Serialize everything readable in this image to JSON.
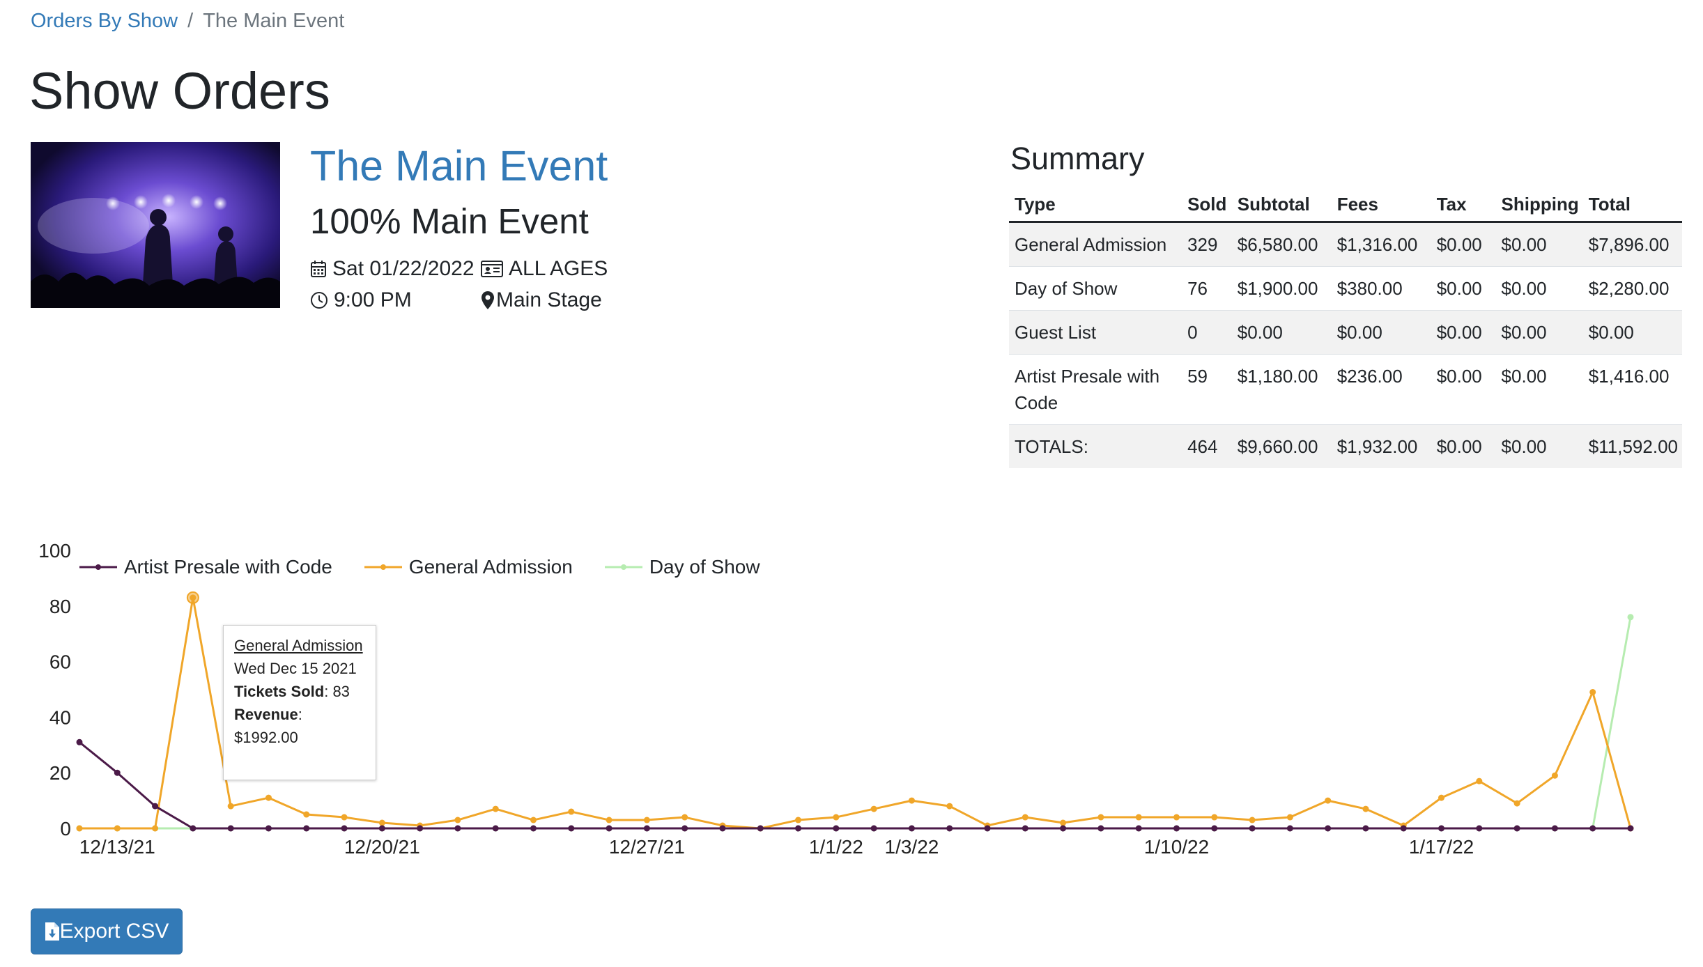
{
  "breadcrumb": {
    "parent": "Orders By Show",
    "separator": "/",
    "current": "The Main Event"
  },
  "page": {
    "title": "Show Orders"
  },
  "event": {
    "name": "The Main Event",
    "subtitle": "100% Main Event",
    "date": "Sat 01/22/2022",
    "age": "ALL AGES",
    "time": "9:00 PM",
    "venue": "Main Stage"
  },
  "summary": {
    "title": "Summary",
    "headers": [
      "Type",
      "Sold",
      "Subtotal",
      "Fees",
      "Tax",
      "Shipping",
      "Total"
    ],
    "rows": [
      [
        "General Admission",
        "329",
        "$6,580.00",
        "$1,316.00",
        "$0.00",
        "$0.00",
        "$7,896.00"
      ],
      [
        "Day of Show",
        "76",
        "$1,900.00",
        "$380.00",
        "$0.00",
        "$0.00",
        "$2,280.00"
      ],
      [
        "Guest List",
        "0",
        "$0.00",
        "$0.00",
        "$0.00",
        "$0.00",
        "$0.00"
      ],
      [
        "Artist Presale with Code",
        "59",
        "$1,180.00",
        "$236.00",
        "$0.00",
        "$0.00",
        "$1,416.00"
      ],
      [
        "TOTALS:",
        "464",
        "$9,660.00",
        "$1,932.00",
        "$0.00",
        "$0.00",
        "$11,592.00"
      ]
    ]
  },
  "tooltip": {
    "title": "General Admission",
    "date": "Wed Dec 15 2021",
    "tickets_label": "Tickets Sold",
    "tickets_value": "83",
    "revenue_label": "Revenue",
    "revenue_value": "$1992.00"
  },
  "export_label": "Export CSV",
  "colors": {
    "link": "#337ab7",
    "artist_presale": "#4b1a48",
    "general_admission": "#f0a629",
    "day_of_show": "#b6ecb0",
    "button": "#337ab7"
  },
  "icons": [
    "calendar-icon",
    "id-card-icon",
    "clock-icon",
    "map-marker-icon",
    "file-download-icon"
  ],
  "chart_data": {
    "type": "line",
    "ylim": [
      0,
      100
    ],
    "yticks": [
      0,
      20,
      40,
      60,
      80,
      100
    ],
    "xtick_labels": [
      {
        "label": "12/13/21",
        "x": "2021-12-13"
      },
      {
        "label": "12/20/21",
        "x": "2021-12-20"
      },
      {
        "label": "12/27/21",
        "x": "2021-12-27"
      },
      {
        "label": "1/1/22",
        "x": "2022-01-01"
      },
      {
        "label": "1/3/22",
        "x": "2022-01-03"
      },
      {
        "label": "1/10/22",
        "x": "2022-01-10"
      },
      {
        "label": "1/17/22",
        "x": "2022-01-17"
      }
    ],
    "x": [
      "2021-12-12",
      "2021-12-13",
      "2021-12-14",
      "2021-12-15",
      "2021-12-16",
      "2021-12-17",
      "2021-12-18",
      "2021-12-19",
      "2021-12-20",
      "2021-12-21",
      "2021-12-22",
      "2021-12-23",
      "2021-12-24",
      "2021-12-25",
      "2021-12-26",
      "2021-12-27",
      "2021-12-28",
      "2021-12-29",
      "2021-12-30",
      "2021-12-31",
      "2022-01-01",
      "2022-01-02",
      "2022-01-03",
      "2022-01-04",
      "2022-01-05",
      "2022-01-06",
      "2022-01-07",
      "2022-01-08",
      "2022-01-09",
      "2022-01-10",
      "2022-01-11",
      "2022-01-12",
      "2022-01-13",
      "2022-01-14",
      "2022-01-15",
      "2022-01-16",
      "2022-01-17",
      "2022-01-18",
      "2022-01-19",
      "2022-01-20",
      "2022-01-21",
      "2022-01-22"
    ],
    "series": [
      {
        "name": "Artist Presale with Code",
        "color": "#4b1a48",
        "values": [
          31,
          20,
          8,
          0,
          0,
          0,
          0,
          0,
          0,
          0,
          0,
          0,
          0,
          0,
          0,
          0,
          0,
          0,
          0,
          0,
          0,
          0,
          0,
          0,
          0,
          0,
          0,
          0,
          0,
          0,
          0,
          0,
          0,
          0,
          0,
          0,
          0,
          0,
          0,
          0,
          0,
          0
        ]
      },
      {
        "name": "General Admission",
        "color": "#f0a629",
        "values": [
          0,
          0,
          0,
          83,
          8,
          11,
          5,
          4,
          2,
          1,
          3,
          7,
          3,
          6,
          3,
          3,
          4,
          1,
          0,
          3,
          4,
          7,
          10,
          8,
          1,
          4,
          2,
          4,
          4,
          4,
          4,
          3,
          4,
          10,
          7,
          1,
          11,
          17,
          9,
          19,
          49,
          0
        ]
      },
      {
        "name": "Day of Show",
        "color": "#b6ecb0",
        "values": [
          0,
          0,
          0,
          0,
          0,
          0,
          0,
          0,
          0,
          0,
          0,
          0,
          0,
          0,
          0,
          0,
          0,
          0,
          0,
          0,
          0,
          0,
          0,
          0,
          0,
          0,
          0,
          0,
          0,
          0,
          0,
          0,
          0,
          0,
          0,
          0,
          0,
          0,
          0,
          0,
          0,
          76
        ]
      }
    ]
  }
}
